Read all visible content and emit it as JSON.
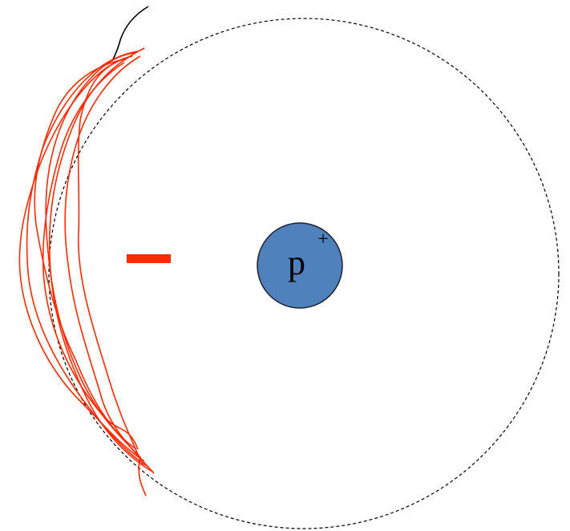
{
  "nucleus": {
    "label": "p",
    "charge": "+"
  }
}
